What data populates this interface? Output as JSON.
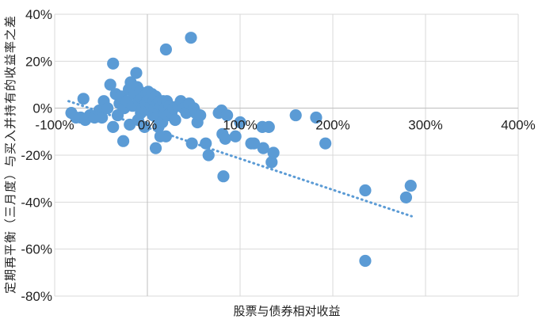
{
  "chart_data": {
    "type": "scatter",
    "title": "",
    "xlabel": "股票与债券相对收益",
    "ylabel": "定期再平衡（三月度）与买入并持有的收益率之差",
    "xlim": [
      -100,
      400
    ],
    "ylim": [
      -80,
      40
    ],
    "x_ticks": [
      "-100%",
      "0%",
      "100%",
      "200%",
      "300%",
      "400%"
    ],
    "y_ticks": [
      "40%",
      "20%",
      "0%",
      "-20%",
      "-40%",
      "-60%",
      "-80%"
    ],
    "grid": "horizontal and vertical",
    "legend": "none",
    "trendline": {
      "style": "dotted",
      "x": [
        -85,
        285
      ],
      "y": [
        3,
        -46
      ]
    },
    "series": [
      {
        "color": "#5b9bd5",
        "points": [
          {
            "x": -82,
            "y": -2
          },
          {
            "x": -77,
            "y": -4
          },
          {
            "x": -72,
            "y": -4
          },
          {
            "x": -69,
            "y": 4
          },
          {
            "x": -67,
            "y": -5
          },
          {
            "x": -62,
            "y": -3
          },
          {
            "x": -57,
            "y": -4
          },
          {
            "x": -52,
            "y": -1
          },
          {
            "x": -49,
            "y": -4
          },
          {
            "x": -47,
            "y": 3
          },
          {
            "x": -43,
            "y": 0
          },
          {
            "x": -40,
            "y": 10
          },
          {
            "x": -37,
            "y": 19
          },
          {
            "x": -37,
            "y": -8
          },
          {
            "x": -34,
            "y": 6
          },
          {
            "x": -32,
            "y": -3
          },
          {
            "x": -30,
            "y": 2
          },
          {
            "x": -28,
            "y": 5
          },
          {
            "x": -26,
            "y": -14
          },
          {
            "x": -25,
            "y": 0
          },
          {
            "x": -22,
            "y": 3
          },
          {
            "x": -20,
            "y": 8
          },
          {
            "x": -19,
            "y": -7
          },
          {
            "x": -18,
            "y": 11
          },
          {
            "x": -16,
            "y": 1
          },
          {
            "x": -14,
            "y": 6
          },
          {
            "x": -12,
            "y": 15
          },
          {
            "x": -11,
            "y": 9
          },
          {
            "x": -10,
            "y": -5
          },
          {
            "x": -9,
            "y": 3
          },
          {
            "x": -8,
            "y": 7
          },
          {
            "x": -7,
            "y": -2
          },
          {
            "x": -6,
            "y": 4
          },
          {
            "x": -5,
            "y": 0
          },
          {
            "x": -4,
            "y": 5
          },
          {
            "x": -3,
            "y": -8
          },
          {
            "x": -2,
            "y": 2
          },
          {
            "x": -1,
            "y": 6
          },
          {
            "x": 0,
            "y": 3
          },
          {
            "x": 1,
            "y": 7
          },
          {
            "x": 2,
            "y": -1
          },
          {
            "x": 3,
            "y": 4
          },
          {
            "x": 4,
            "y": 1
          },
          {
            "x": 5,
            "y": 6
          },
          {
            "x": 6,
            "y": -3
          },
          {
            "x": 7,
            "y": 3
          },
          {
            "x": 8,
            "y": 0
          },
          {
            "x": 9,
            "y": 5
          },
          {
            "x": 9,
            "y": -17
          },
          {
            "x": 10,
            "y": -4
          },
          {
            "x": 11,
            "y": 2
          },
          {
            "x": 12,
            "y": -8
          },
          {
            "x": 13,
            "y": 3
          },
          {
            "x": 14,
            "y": -12
          },
          {
            "x": 15,
            "y": 1
          },
          {
            "x": 16,
            "y": -6
          },
          {
            "x": 17,
            "y": 3
          },
          {
            "x": 18,
            "y": -2
          },
          {
            "x": 19,
            "y": 0
          },
          {
            "x": 20,
            "y": 25
          },
          {
            "x": 20,
            "y": -12
          },
          {
            "x": 21,
            "y": 3
          },
          {
            "x": 22,
            "y": -3
          },
          {
            "x": 24,
            "y": 1
          },
          {
            "x": 26,
            "y": -2
          },
          {
            "x": 28,
            "y": 0
          },
          {
            "x": 30,
            "y": -5
          },
          {
            "x": 33,
            "y": 1
          },
          {
            "x": 36,
            "y": 3
          },
          {
            "x": 39,
            "y": 0
          },
          {
            "x": 42,
            "y": -2
          },
          {
            "x": 45,
            "y": 2
          },
          {
            "x": 47,
            "y": 30
          },
          {
            "x": 48,
            "y": -15
          },
          {
            "x": 50,
            "y": 0
          },
          {
            "x": 52,
            "y": -2
          },
          {
            "x": 54,
            "y": -6
          },
          {
            "x": 57,
            "y": -3
          },
          {
            "x": 63,
            "y": -15
          },
          {
            "x": 66,
            "y": -20
          },
          {
            "x": 77,
            "y": -2
          },
          {
            "x": 80,
            "y": -1
          },
          {
            "x": 81,
            "y": -11
          },
          {
            "x": 82,
            "y": -29
          },
          {
            "x": 84,
            "y": -13
          },
          {
            "x": 86,
            "y": -3
          },
          {
            "x": 95,
            "y": -12
          },
          {
            "x": 100,
            "y": -6
          },
          {
            "x": 112,
            "y": -15
          },
          {
            "x": 115,
            "y": -15
          },
          {
            "x": 124,
            "y": -8
          },
          {
            "x": 125,
            "y": -17
          },
          {
            "x": 131,
            "y": -8
          },
          {
            "x": 134,
            "y": -23
          },
          {
            "x": 136,
            "y": -19
          },
          {
            "x": 160,
            "y": -3
          },
          {
            "x": 182,
            "y": -4
          },
          {
            "x": 192,
            "y": -15
          },
          {
            "x": 235,
            "y": -35
          },
          {
            "x": 235,
            "y": -65
          },
          {
            "x": 279,
            "y": -38
          },
          {
            "x": 284,
            "y": -33
          }
        ]
      }
    ]
  }
}
